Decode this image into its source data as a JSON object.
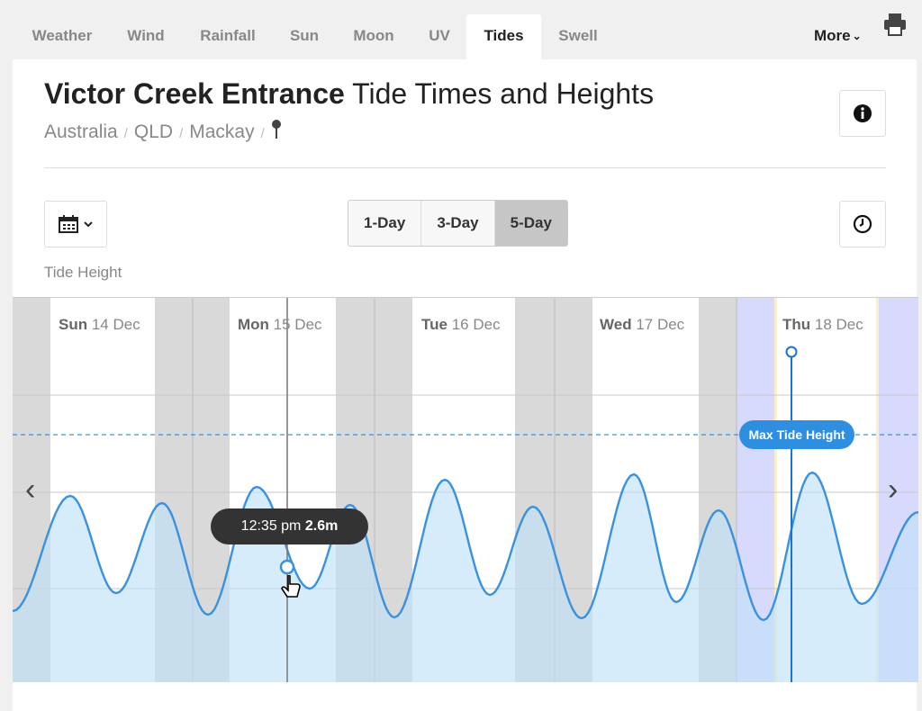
{
  "tabs": [
    {
      "label": "Weather"
    },
    {
      "label": "Wind"
    },
    {
      "label": "Rainfall"
    },
    {
      "label": "Sun"
    },
    {
      "label": "Moon"
    },
    {
      "label": "UV"
    },
    {
      "label": "Tides",
      "active": true
    },
    {
      "label": "Swell"
    }
  ],
  "more_label": "More",
  "page": {
    "title_bold": "Victor Creek Entrance",
    "title_rest": " Tide Times and Heights",
    "breadcrumb": [
      "Australia",
      "QLD",
      "Mackay"
    ]
  },
  "range_buttons": [
    {
      "label": "1-Day"
    },
    {
      "label": "3-Day"
    },
    {
      "label": "5-Day",
      "active": true
    }
  ],
  "tide_height_label": "Tide Height",
  "chart_data": {
    "type": "area",
    "days": [
      {
        "dow": "Sun",
        "date": "14 Dec"
      },
      {
        "dow": "Mon",
        "date": "15 Dec"
      },
      {
        "dow": "Tue",
        "date": "16 Dec"
      },
      {
        "dow": "Wed",
        "date": "17 Dec"
      },
      {
        "dow": "Thu",
        "date": "18 Dec"
      }
    ],
    "tooltip": {
      "time": "12:35 pm",
      "height": "2.6m"
    },
    "max_label": "Max Tide Height",
    "colors": {
      "fill": "#bfe0f9",
      "line": "#3a91e0",
      "night": "#d9d9d9",
      "highlight": "#d8dafd"
    }
  },
  "icons": {
    "print": "print-icon",
    "info": "info-icon",
    "calendar": "calendar-icon",
    "clock": "clock-icon",
    "pin": "pin-icon",
    "prev": "chevron-left-icon",
    "next": "chevron-right-icon"
  }
}
